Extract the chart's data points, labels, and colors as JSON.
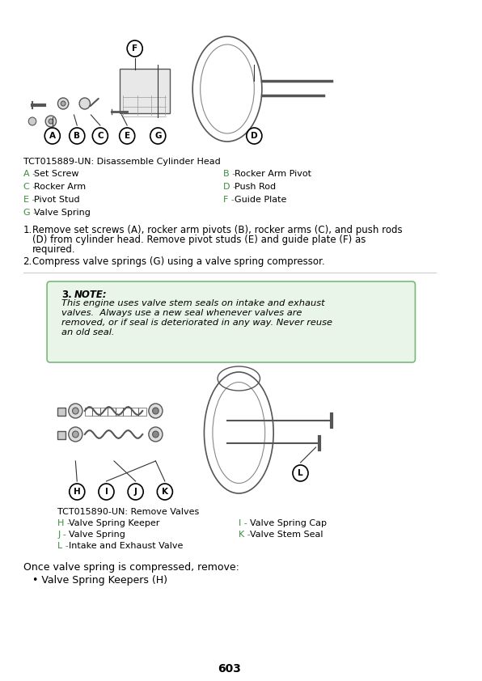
{
  "page_number": "603",
  "background_color": "#ffffff",
  "green_color": "#3d8c3d",
  "black_color": "#000000",
  "note_bg_color": "#e8f5e8",
  "note_border_color": "#7ab87a",
  "fig1_caption": "TCT015889-UN: Disassemble Cylinder Head",
  "fig1_labels_green": [
    "A",
    "C",
    "E",
    "G",
    "B",
    "D",
    "F"
  ],
  "fig1_parts_left": [
    [
      "A",
      "Set Screw"
    ],
    [
      "C",
      "Rocker Arm"
    ],
    [
      "E",
      "Pivot Stud"
    ],
    [
      "G",
      "Valve Spring"
    ]
  ],
  "fig1_parts_right": [
    [
      "B",
      "Rocker Arm Pivot"
    ],
    [
      "D",
      "Push Rod"
    ],
    [
      "F",
      "Guide Plate"
    ]
  ],
  "step1": "Remove set screws (A), rocker arm pivots (B), rocker arms (C), and push rods\n(D) from cylinder head. Remove pivot studs (E) and guide plate (F) as\nrequired.",
  "step2": "Compress valve springs (G) using a valve spring compressor.",
  "note_number": "3.",
  "note_title": "NOTE:",
  "note_text": "This engine uses valve stem seals on intake and exhaust\nvalves.  Always use a new seal whenever valves are\nremoved, or if seal is deteriorated in any way. Never reuse\nan old seal.",
  "fig2_caption": "TCT015890-UN: Remove Valves",
  "fig2_parts_left": [
    [
      "H",
      "Valve Spring Keeper"
    ],
    [
      "J",
      "Valve Spring"
    ],
    [
      "L",
      "Intake and Exhaust Valve"
    ]
  ],
  "fig2_parts_right": [
    [
      "I",
      "Valve Spring Cap"
    ],
    [
      "K",
      "Valve Stem Seal"
    ]
  ],
  "step3_title": "Once valve spring is compressed, remove:",
  "step3_bullet": "Valve Spring Keepers (H)"
}
